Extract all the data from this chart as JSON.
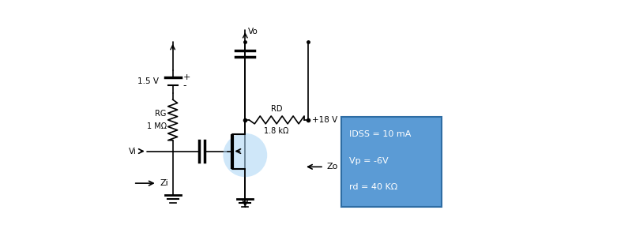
{
  "bg_color": "#ffffff",
  "box_color": "#5b9bd5",
  "box_edge_color": "#2e6da4",
  "box_text_color": "#ffffff",
  "box_lines": [
    "IDSS = 10 mA",
    "Vp = -6V",
    "rd = 40 KΩ"
  ],
  "vdd_label": "1.5 V",
  "rg_label": "RG",
  "rg_val": "1 MΩ",
  "rd_label": "RD",
  "rd_val": "1.8 kΩ",
  "vdd18_label": "+18 V",
  "vo_label": "Vo",
  "vi_label": "Vi",
  "zi_label": "Zi",
  "zo_label": "Zo"
}
